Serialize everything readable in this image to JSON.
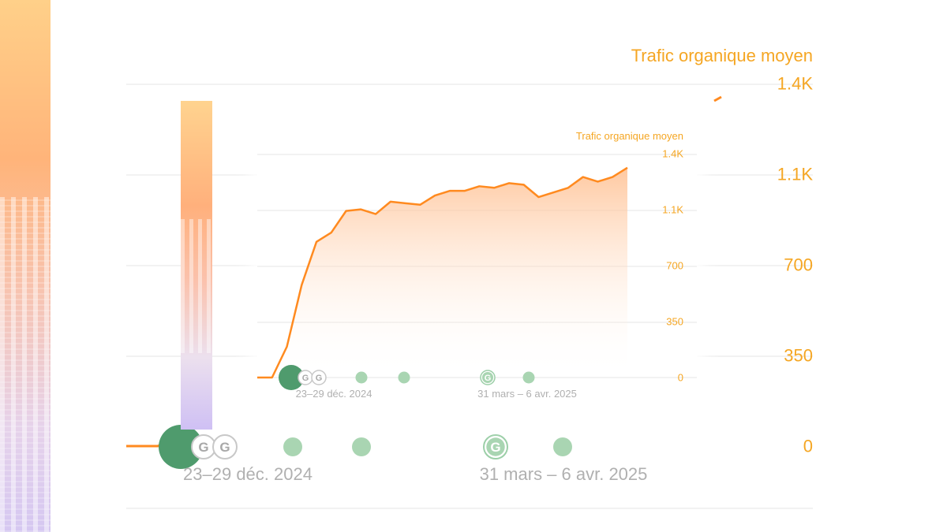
{
  "colors": {
    "accent": "#f5a623",
    "line": "#ff8a1f",
    "marker_big": "#4f9b6d",
    "marker_light": "#a9d5b2",
    "axis_text": "#b0b0b0"
  },
  "chart_data": [
    {
      "type": "line",
      "title": "Trafic organique moyen",
      "y_ticks": [
        "0",
        "350",
        "700",
        "1.1K",
        "1.4K"
      ],
      "x_tick_labels": [
        "23–29 déc. 2024",
        "31 mars – 6 avr. 2025"
      ],
      "ylim": [
        0,
        1400
      ],
      "series": [
        {
          "values": [
            0,
            0,
            60
          ]
        }
      ],
      "event_markers": [
        {
          "type": "large-dot"
        },
        {
          "type": "google-icon",
          "label": "G"
        },
        {
          "type": "google-icon",
          "label": "G"
        },
        {
          "type": "light-dot"
        },
        {
          "type": "light-dot"
        },
        {
          "type": "google-dot",
          "label": "G"
        },
        {
          "type": "light-dot"
        }
      ],
      "grid": true
    },
    {
      "type": "area",
      "title": "Trafic organique moyen",
      "y_ticks": [
        "0",
        "350",
        "700",
        "1.1K",
        "1.4K"
      ],
      "x_tick_labels": [
        "23–29 déc. 2024",
        "31 mars – 6 avr. 2025"
      ],
      "ylim": [
        0,
        1400
      ],
      "series": [
        {
          "values": [
            0,
            0,
            200,
            600,
            880,
            940,
            1080,
            1090,
            1060,
            1140,
            1130,
            1120,
            1180,
            1210,
            1210,
            1240,
            1230,
            1260,
            1250,
            1170,
            1200,
            1230,
            1300,
            1270,
            1300,
            1360
          ]
        }
      ],
      "event_markers": [
        {
          "type": "large-dot"
        },
        {
          "type": "google-icon",
          "label": "G"
        },
        {
          "type": "google-icon",
          "label": "G"
        },
        {
          "type": "light-dot"
        },
        {
          "type": "light-dot"
        },
        {
          "type": "google-dot",
          "label": "G"
        },
        {
          "type": "light-dot"
        }
      ],
      "grid": true
    }
  ]
}
